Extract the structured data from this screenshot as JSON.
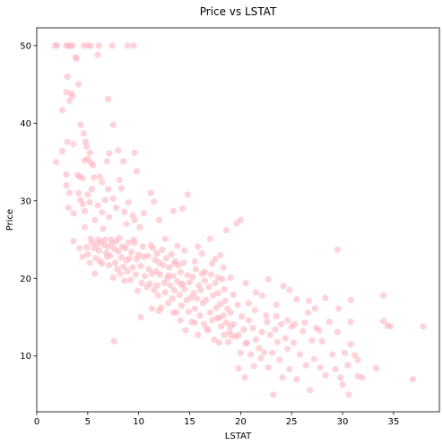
{
  "chart_data": {
    "type": "scatter",
    "title": "Price vs LSTAT",
    "xlabel": "LSTAT",
    "ylabel": "Price",
    "xlim": [
      0,
      39.5
    ],
    "ylim": [
      2.8,
      52.3
    ],
    "xticks": [
      0,
      5,
      10,
      15,
      20,
      25,
      30,
      35
    ],
    "yticks": [
      10,
      20,
      30,
      40,
      50
    ],
    "grid": false,
    "marker_color": "#ffb6c1",
    "marker_alpha": 0.6,
    "points": [
      [
        1.8,
        50
      ],
      [
        2.0,
        50
      ],
      [
        2.9,
        50
      ],
      [
        3.1,
        50
      ],
      [
        3.3,
        50
      ],
      [
        3.5,
        50
      ],
      [
        4.6,
        50
      ],
      [
        5.0,
        50
      ],
      [
        5.3,
        50
      ],
      [
        6.1,
        50
      ],
      [
        7.4,
        50
      ],
      [
        8.9,
        50
      ],
      [
        9.5,
        50
      ],
      [
        1.9,
        35
      ],
      [
        2.5,
        41.7
      ],
      [
        2.9,
        44
      ],
      [
        3.0,
        46
      ],
      [
        3.2,
        42.9
      ],
      [
        3.4,
        43.8
      ],
      [
        3.5,
        43.5
      ],
      [
        3.8,
        48.5
      ],
      [
        3.9,
        48.3
      ],
      [
        4.1,
        45
      ],
      [
        4.3,
        39.8
      ],
      [
        4.6,
        38.7
      ],
      [
        4.8,
        37.6
      ],
      [
        4.9,
        37
      ],
      [
        6.0,
        48.8
      ],
      [
        7.0,
        43.1
      ],
      [
        7.5,
        39.8
      ],
      [
        2.5,
        36.4
      ],
      [
        2.9,
        33.4
      ],
      [
        3.0,
        37.6
      ],
      [
        3.2,
        31
      ],
      [
        3.6,
        37.3
      ],
      [
        4.0,
        33.3
      ],
      [
        4.2,
        33.1
      ],
      [
        4.5,
        32.9
      ],
      [
        4.7,
        35.2
      ],
      [
        5.0,
        35.4
      ],
      [
        5.2,
        36.2
      ],
      [
        5.3,
        34.9
      ],
      [
        5.5,
        34.6
      ],
      [
        5.6,
        33
      ],
      [
        6.2,
        33.1
      ],
      [
        6.4,
        32.4
      ],
      [
        6.9,
        35.1
      ],
      [
        7.1,
        36.1
      ],
      [
        8.0,
        36.5
      ],
      [
        8.5,
        35.1
      ],
      [
        9.6,
        36.2
      ],
      [
        9.8,
        33.8
      ],
      [
        2.9,
        32
      ],
      [
        3.1,
        29.1
      ],
      [
        3.6,
        28.4
      ],
      [
        4.1,
        31
      ],
      [
        4.3,
        30.1
      ],
      [
        4.5,
        29.6
      ],
      [
        4.7,
        28.7
      ],
      [
        5.0,
        30.8
      ],
      [
        5.2,
        29.8
      ],
      [
        5.4,
        31.5
      ],
      [
        5.7,
        27.5
      ],
      [
        6.0,
        29.4
      ],
      [
        6.4,
        28.5
      ],
      [
        6.7,
        30.1
      ],
      [
        7.0,
        31.5
      ],
      [
        7.1,
        27.9
      ],
      [
        7.5,
        30.3
      ],
      [
        7.8,
        29.1
      ],
      [
        8.1,
        32.7
      ],
      [
        8.3,
        31.6
      ],
      [
        8.6,
        28.6
      ],
      [
        8.8,
        27
      ],
      [
        9.0,
        29.8
      ],
      [
        9.4,
        28.1
      ],
      [
        9.6,
        27.5
      ],
      [
        10.1,
        26.6
      ],
      [
        10.5,
        28.4
      ],
      [
        11.2,
        31
      ],
      [
        11.5,
        29.9
      ],
      [
        12.0,
        27.5
      ],
      [
        13.4,
        28.7
      ],
      [
        14.3,
        29
      ],
      [
        14.8,
        30.8
      ],
      [
        3.6,
        24.8
      ],
      [
        4.2,
        23.9
      ],
      [
        4.5,
        22.8
      ],
      [
        4.7,
        26.6
      ],
      [
        4.9,
        24
      ],
      [
        5.0,
        23.1
      ],
      [
        5.2,
        22
      ],
      [
        5.3,
        25.1
      ],
      [
        5.4,
        24.6
      ],
      [
        5.6,
        23.9
      ],
      [
        5.7,
        20.6
      ],
      [
        5.8,
        22.6
      ],
      [
        5.9,
        24.4
      ],
      [
        6.0,
        25
      ],
      [
        6.1,
        23.6
      ],
      [
        6.2,
        22.2
      ],
      [
        6.3,
        24.7
      ],
      [
        6.4,
        21.9
      ],
      [
        6.5,
        26.4
      ],
      [
        6.6,
        24.3
      ],
      [
        6.7,
        25
      ],
      [
        6.8,
        23.3
      ],
      [
        6.9,
        22.8
      ],
      [
        7.0,
        24.1
      ],
      [
        7.1,
        21.7
      ],
      [
        7.2,
        22.9
      ],
      [
        7.3,
        25
      ],
      [
        7.4,
        24.5
      ],
      [
        7.5,
        20.1
      ],
      [
        7.6,
        23.8
      ],
      [
        7.7,
        22
      ],
      [
        7.8,
        24.8
      ],
      [
        7.9,
        21.2
      ],
      [
        8.0,
        23.5
      ],
      [
        8.1,
        25.2
      ],
      [
        8.2,
        20.6
      ],
      [
        8.3,
        22.7
      ],
      [
        8.4,
        24.1
      ],
      [
        8.5,
        21.5
      ],
      [
        8.6,
        19.7
      ],
      [
        8.7,
        23.9
      ],
      [
        8.8,
        22.3
      ],
      [
        8.9,
        20.9
      ],
      [
        9.0,
        24.6
      ],
      [
        9.1,
        22.6
      ],
      [
        9.2,
        19.8
      ],
      [
        9.3,
        23.4
      ],
      [
        9.4,
        21.4
      ],
      [
        9.5,
        25
      ],
      [
        9.6,
        24.6
      ],
      [
        9.7,
        20.5
      ],
      [
        9.8,
        22.5
      ],
      [
        9.9,
        18.4
      ],
      [
        10.0,
        23
      ],
      [
        10.2,
        21.6
      ],
      [
        10.3,
        19.4
      ],
      [
        10.4,
        24.1
      ],
      [
        10.5,
        22.8
      ],
      [
        10.6,
        20.3
      ],
      [
        10.8,
        18.9
      ],
      [
        10.9,
        22.9
      ],
      [
        11.0,
        21.2
      ],
      [
        11.1,
        19.3
      ],
      [
        11.2,
        24.3
      ],
      [
        11.3,
        20.6
      ],
      [
        11.4,
        23.9
      ],
      [
        11.5,
        18.5
      ],
      [
        11.6,
        22.4
      ],
      [
        11.7,
        20.9
      ],
      [
        11.8,
        19.1
      ],
      [
        11.9,
        17.8
      ],
      [
        12.0,
        22
      ],
      [
        12.1,
        20.5
      ],
      [
        12.2,
        16.2
      ],
      [
        12.3,
        23.7
      ],
      [
        12.4,
        21.7
      ],
      [
        12.5,
        19.4
      ],
      [
        12.6,
        18.2
      ],
      [
        12.7,
        22.6
      ],
      [
        12.8,
        20
      ],
      [
        12.9,
        16.8
      ],
      [
        13.0,
        21.4
      ],
      [
        13.1,
        19.1
      ],
      [
        13.2,
        23.1
      ],
      [
        13.3,
        17.4
      ],
      [
        13.4,
        20.3
      ],
      [
        13.5,
        18.5
      ],
      [
        13.6,
        22.2
      ],
      [
        13.7,
        15.6
      ],
      [
        13.8,
        19.6
      ],
      [
        13.9,
        21.7
      ],
      [
        14.0,
        17.9
      ],
      [
        14.1,
        20.8
      ],
      [
        14.2,
        16.5
      ],
      [
        14.3,
        19.3
      ],
      [
        14.4,
        22
      ],
      [
        14.5,
        18.6
      ],
      [
        14.6,
        13.3
      ],
      [
        14.7,
        17.2
      ],
      [
        14.8,
        20.4
      ],
      [
        14.9,
        15.7
      ],
      [
        15.0,
        19.5
      ],
      [
        15.1,
        17.5
      ],
      [
        15.2,
        14.4
      ],
      [
        15.3,
        20.2
      ],
      [
        15.4,
        18.1
      ],
      [
        15.5,
        16.1
      ],
      [
        15.6,
        21.2
      ],
      [
        15.7,
        17.4
      ],
      [
        15.8,
        12.7
      ],
      [
        15.9,
        19.1
      ],
      [
        16.0,
        15.2
      ],
      [
        16.1,
        18.5
      ],
      [
        16.2,
        20.6
      ],
      [
        16.3,
        16.8
      ],
      [
        16.4,
        14.1
      ],
      [
        16.5,
        19.7
      ],
      [
        16.6,
        17.2
      ],
      [
        16.7,
        13.5
      ],
      [
        16.9,
        18.9
      ],
      [
        17.0,
        15.6
      ],
      [
        17.1,
        20.5
      ],
      [
        17.2,
        14.6
      ],
      [
        17.3,
        17.8
      ],
      [
        17.4,
        12.1
      ],
      [
        17.5,
        19.4
      ],
      [
        17.6,
        16.2
      ],
      [
        17.7,
        14.9
      ],
      [
        17.8,
        18.1
      ],
      [
        17.9,
        11.7
      ],
      [
        18.0,
        16.7
      ],
      [
        18.1,
        13.8
      ],
      [
        18.2,
        19.9
      ],
      [
        18.3,
        15.2
      ],
      [
        18.4,
        12.7
      ],
      [
        18.5,
        17.1
      ],
      [
        18.6,
        14.3
      ],
      [
        18.7,
        16.1
      ],
      [
        18.8,
        11.8
      ],
      [
        18.9,
        13.1
      ],
      [
        19.0,
        15.6
      ],
      [
        19.1,
        12.6
      ],
      [
        19.3,
        14.1
      ],
      [
        19.5,
        12.5
      ],
      [
        19.7,
        16.6
      ],
      [
        19.8,
        8.4
      ],
      [
        20.0,
        10.4
      ],
      [
        20.1,
        15.1
      ],
      [
        20.3,
        13.4
      ],
      [
        20.4,
        7.2
      ],
      [
        20.6,
        11.7
      ],
      [
        20.8,
        14.6
      ],
      [
        21.0,
        10.2
      ],
      [
        21.2,
        13.6
      ],
      [
        21.3,
        8.7
      ],
      [
        21.5,
        12.1
      ],
      [
        21.8,
        11
      ],
      [
        22.0,
        9.7
      ],
      [
        22.1,
        13.1
      ],
      [
        22.3,
        10.5
      ],
      [
        22.6,
        14.4
      ],
      [
        22.7,
        8.5
      ],
      [
        22.9,
        12.7
      ],
      [
        23.1,
        10.4
      ],
      [
        23.2,
        5
      ],
      [
        23.4,
        13.4
      ],
      [
        23.6,
        11.8
      ],
      [
        23.8,
        9.5
      ],
      [
        24.0,
        14.1
      ],
      [
        24.1,
        7.2
      ],
      [
        24.4,
        12.3
      ],
      [
        24.6,
        10.9
      ],
      [
        24.8,
        8.3
      ],
      [
        25.0,
        13.8
      ],
      [
        25.2,
        11.7
      ],
      [
        25.5,
        7
      ],
      [
        25.8,
        10.2
      ],
      [
        26.1,
        13.2
      ],
      [
        26.4,
        8.8
      ],
      [
        26.6,
        15.6
      ],
      [
        26.8,
        5.6
      ],
      [
        27.0,
        12
      ],
      [
        27.2,
        9.6
      ],
      [
        27.4,
        13.6
      ],
      [
        27.8,
        8.5
      ],
      [
        28.0,
        11.9
      ],
      [
        28.3,
        7.5
      ],
      [
        28.7,
        14.4
      ],
      [
        29.0,
        10.2
      ],
      [
        29.3,
        8.3
      ],
      [
        29.5,
        13.1
      ],
      [
        29.8,
        7.2
      ],
      [
        30.0,
        6.3
      ],
      [
        30.2,
        10.4
      ],
      [
        30.5,
        8.8
      ],
      [
        30.6,
        5
      ],
      [
        30.8,
        14.4
      ],
      [
        31.2,
        10.1
      ],
      [
        31.5,
        7.4
      ],
      [
        31.9,
        7.2
      ],
      [
        33.3,
        8.4
      ],
      [
        34.0,
        14.5
      ],
      [
        34.4,
        13.9
      ],
      [
        34.0,
        17.8
      ],
      [
        34.7,
        13.8
      ],
      [
        36.9,
        7
      ],
      [
        37.9,
        13.8
      ],
      [
        7.6,
        11.9
      ],
      [
        10.2,
        15
      ],
      [
        11.3,
        16.1
      ],
      [
        12.0,
        15.8
      ],
      [
        13.4,
        15.6
      ],
      [
        14.1,
        14.6
      ],
      [
        15.5,
        14.3
      ],
      [
        16.8,
        13.3
      ],
      [
        17.9,
        14.9
      ],
      [
        19.0,
        13.8
      ],
      [
        19.8,
        12.7
      ],
      [
        20.5,
        11.6
      ],
      [
        15.8,
        24.1
      ],
      [
        16.2,
        23.2
      ],
      [
        17.0,
        25.1
      ],
      [
        17.5,
        22.5
      ],
      [
        18.0,
        23
      ],
      [
        18.3,
        21.4
      ],
      [
        18.6,
        26.2
      ],
      [
        19.0,
        20.1
      ],
      [
        19.6,
        27.1
      ],
      [
        20.0,
        27.5
      ],
      [
        20.5,
        19.4
      ],
      [
        21.5,
        18.2
      ],
      [
        22.1,
        17.8
      ],
      [
        22.7,
        19.9
      ],
      [
        23.5,
        16.6
      ],
      [
        24.2,
        19
      ],
      [
        24.8,
        18.5
      ],
      [
        25.5,
        17.3
      ],
      [
        26.7,
        17.1
      ],
      [
        27.3,
        16.1
      ],
      [
        28.3,
        17.5
      ],
      [
        29.6,
        16.1
      ],
      [
        30.8,
        17.2
      ],
      [
        14.5,
        23.6
      ],
      [
        13.8,
        24.2
      ],
      [
        12.6,
        25.1
      ],
      [
        11.8,
        23.2
      ],
      [
        12.9,
        20.4
      ],
      [
        13.5,
        21.9
      ],
      [
        14.2,
        19.2
      ],
      [
        15.5,
        22.2
      ],
      [
        16.5,
        20.8
      ],
      [
        17.2,
        21.9
      ],
      [
        17.8,
        20.1
      ],
      [
        18.4,
        18.6
      ],
      [
        19.3,
        17.9
      ],
      [
        20.8,
        16.8
      ],
      [
        21.4,
        15.9
      ],
      [
        22.5,
        15.2
      ],
      [
        23.5,
        15.1
      ],
      [
        24.6,
        14.6
      ],
      [
        25.3,
        14.1
      ],
      [
        26.3,
        14.3
      ],
      [
        27.7,
        13.3
      ],
      [
        29.5,
        23.7
      ],
      [
        30.8,
        11.5
      ],
      [
        31.5,
        9.5
      ]
    ]
  }
}
